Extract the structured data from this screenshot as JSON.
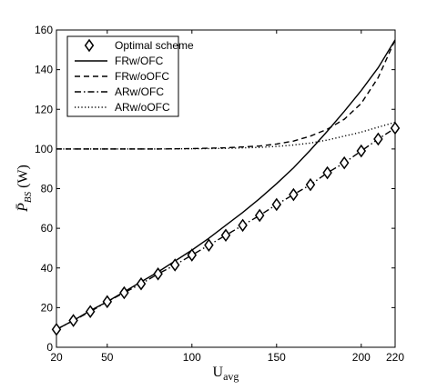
{
  "chart_data": {
    "type": "line",
    "title": "",
    "xlabel": "U",
    "xlabel_sub": "avg",
    "ylabel": "P̄",
    "ylabel_sub": "BS",
    "ylabel_unit": "(W)",
    "xlim": [
      20,
      220
    ],
    "ylim": [
      0,
      160
    ],
    "x_ticks": [
      20,
      50,
      100,
      150,
      200,
      220
    ],
    "y_ticks": [
      0,
      20,
      40,
      60,
      80,
      100,
      120,
      140,
      160
    ],
    "grid": false,
    "legend_position": "top-left",
    "series": [
      {
        "name": "Optimal scheme",
        "style": "markers",
        "marker": "diamond",
        "x": [
          20,
          30,
          40,
          50,
          60,
          70,
          80,
          90,
          100,
          110,
          120,
          130,
          140,
          150,
          160,
          170,
          180,
          190,
          200,
          210,
          220
        ],
        "y": [
          9,
          13.5,
          18,
          23,
          27.5,
          32,
          37,
          41.5,
          46.5,
          51.5,
          56.5,
          61.5,
          66.5,
          72,
          77,
          82,
          88,
          93,
          99,
          105,
          110.5
        ]
      },
      {
        "name": "FRw/OFC",
        "style": "solid",
        "x": [
          20,
          30,
          40,
          50,
          60,
          70,
          80,
          90,
          100,
          110,
          120,
          130,
          140,
          150,
          160,
          170,
          180,
          190,
          200,
          210,
          220
        ],
        "y": [
          9,
          13.5,
          18.5,
          23,
          28,
          33,
          38,
          43.5,
          49,
          55,
          61.5,
          68,
          75,
          82.5,
          90.5,
          99.5,
          109,
          119,
          129.5,
          141,
          155
        ]
      },
      {
        "name": "FRw/oOFC",
        "style": "dashed",
        "x": [
          20,
          40,
          60,
          80,
          100,
          120,
          140,
          150,
          160,
          170,
          180,
          190,
          200,
          210,
          220
        ],
        "y": [
          100,
          100,
          100,
          100,
          100.2,
          100.6,
          101.5,
          102.5,
          104,
          106.5,
          110,
          115,
          123,
          136,
          155
        ]
      },
      {
        "name": "ARw/OFC",
        "style": "dashdot",
        "x": [
          20,
          30,
          40,
          50,
          60,
          70,
          80,
          90,
          100,
          110,
          120,
          130,
          140,
          150,
          160,
          170,
          180,
          190,
          200,
          210,
          220
        ],
        "y": [
          9,
          13.5,
          18,
          23,
          27.5,
          32,
          37,
          41.5,
          46.5,
          51.5,
          56.5,
          61.5,
          66.5,
          72,
          77,
          82,
          88,
          93,
          99,
          105,
          110.5
        ]
      },
      {
        "name": "ARw/oOFC",
        "style": "dotted",
        "x": [
          20,
          40,
          60,
          80,
          100,
          120,
          140,
          150,
          160,
          170,
          180,
          190,
          200,
          210,
          220
        ],
        "y": [
          100,
          100,
          100,
          100,
          100.1,
          100.3,
          100.8,
          101.3,
          102,
          103,
          104.5,
          106.5,
          108.5,
          111,
          113.5
        ]
      }
    ]
  }
}
